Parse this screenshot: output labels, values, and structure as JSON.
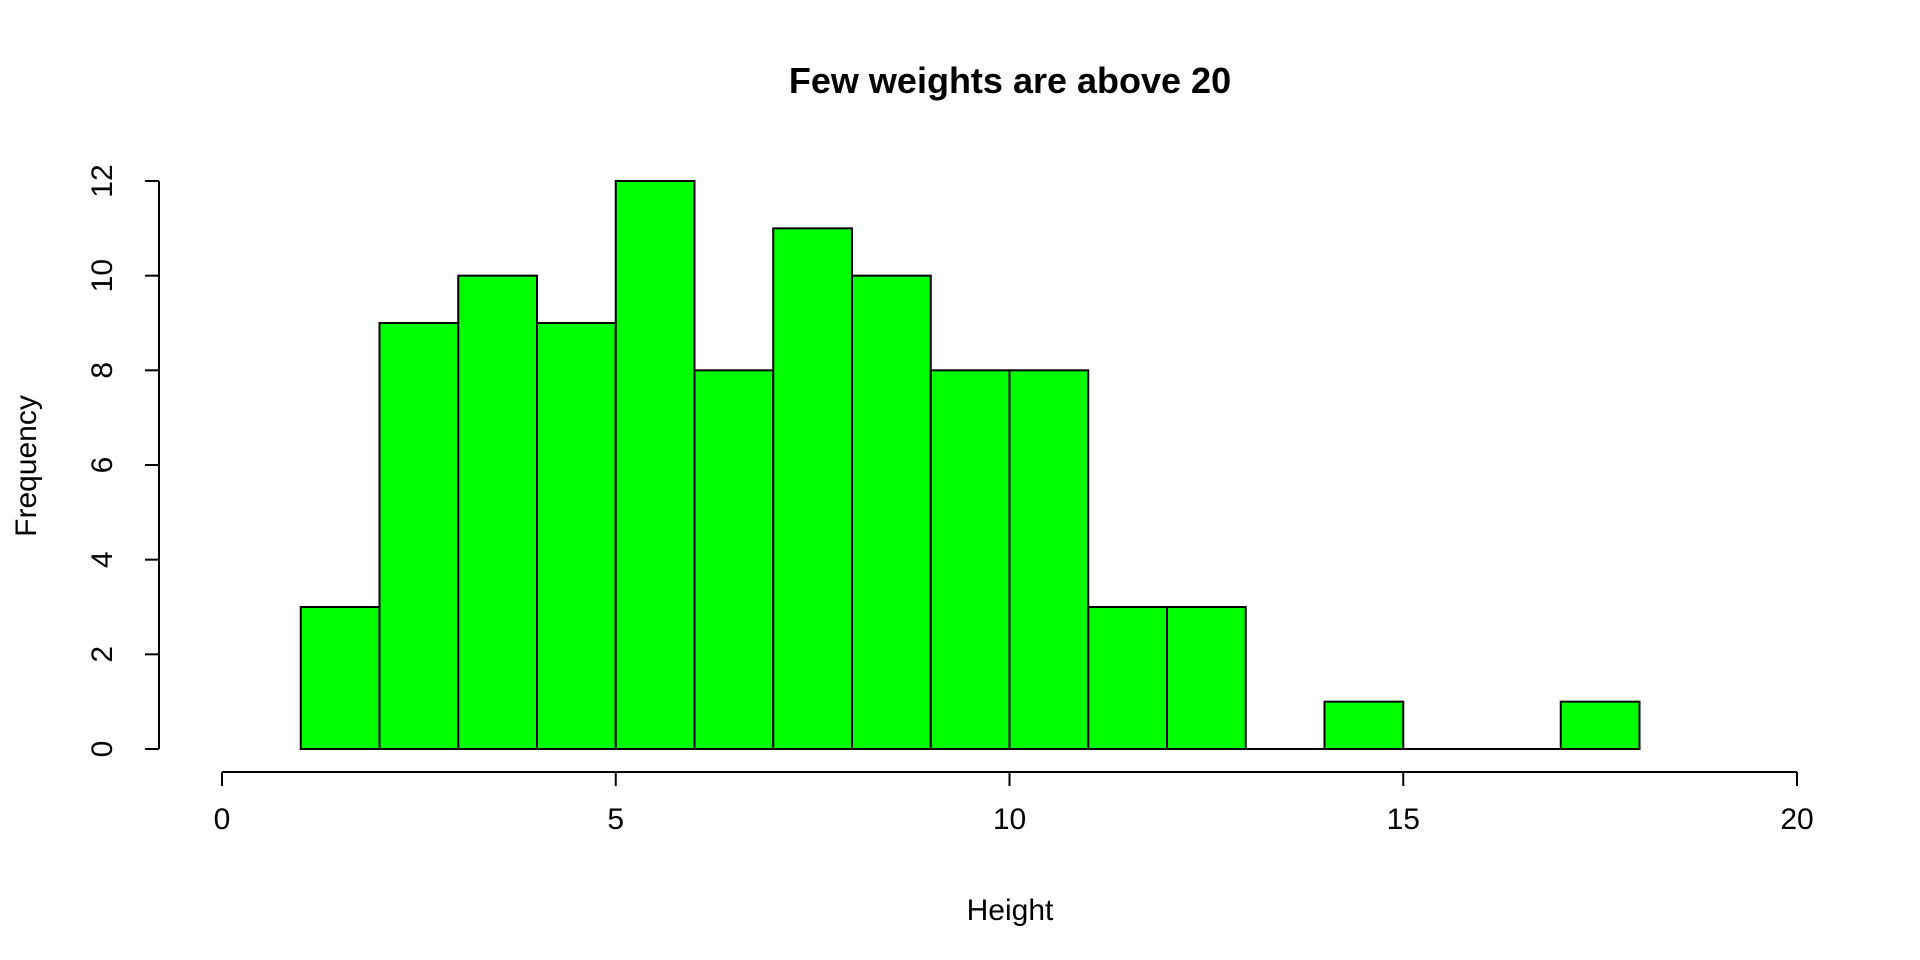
{
  "chart_data": {
    "type": "bar",
    "subtype": "histogram",
    "title": "Few weights are above 20",
    "xlabel": "Height",
    "ylabel": "Frequency",
    "xlim": [
      0,
      20
    ],
    "ylim": [
      0,
      12
    ],
    "x_ticks": [
      0,
      5,
      10,
      15,
      20
    ],
    "y_ticks": [
      0,
      2,
      4,
      6,
      8,
      10,
      12
    ],
    "bin_width": 1,
    "bins": [
      {
        "start": 1,
        "end": 2,
        "count": 3
      },
      {
        "start": 2,
        "end": 3,
        "count": 9
      },
      {
        "start": 3,
        "end": 4,
        "count": 10
      },
      {
        "start": 4,
        "end": 5,
        "count": 9
      },
      {
        "start": 5,
        "end": 6,
        "count": 12
      },
      {
        "start": 6,
        "end": 7,
        "count": 8
      },
      {
        "start": 7,
        "end": 8,
        "count": 11
      },
      {
        "start": 8,
        "end": 9,
        "count": 10
      },
      {
        "start": 9,
        "end": 10,
        "count": 8
      },
      {
        "start": 10,
        "end": 11,
        "count": 8
      },
      {
        "start": 11,
        "end": 12,
        "count": 3
      },
      {
        "start": 12,
        "end": 13,
        "count": 3
      },
      {
        "start": 13,
        "end": 14,
        "count": 0
      },
      {
        "start": 14,
        "end": 15,
        "count": 1
      },
      {
        "start": 15,
        "end": 16,
        "count": 0
      },
      {
        "start": 16,
        "end": 17,
        "count": 0
      },
      {
        "start": 17,
        "end": 18,
        "count": 1
      }
    ],
    "bar_color": "#00ff00",
    "border_color": "#000000",
    "grid": false,
    "legend": "none"
  }
}
